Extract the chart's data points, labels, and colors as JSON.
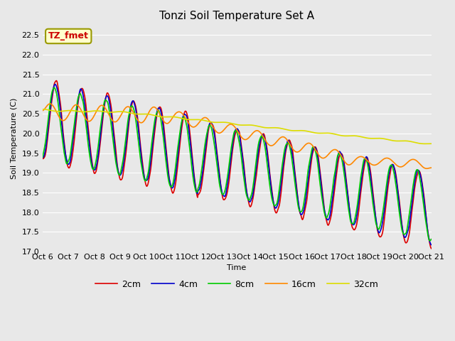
{
  "title": "Tonzi Soil Temperature Set A",
  "ylabel": "Soil Temperature (C)",
  "xlabel": "Time",
  "annotation_text": "TZ_fmet",
  "annotation_color": "#cc0000",
  "annotation_bg": "#ffffcc",
  "annotation_border": "#999900",
  "ylim": [
    17.0,
    22.75
  ],
  "yticks": [
    17.0,
    17.5,
    18.0,
    18.5,
    19.0,
    19.5,
    20.0,
    20.5,
    21.0,
    21.5,
    22.0,
    22.5
  ],
  "bg_color": "#e8e8e8",
  "grid_color": "#ffffff",
  "line_colors": [
    "#dd0000",
    "#0000cc",
    "#00cc00",
    "#ff8800",
    "#dddd00"
  ],
  "line_labels": [
    "2cm",
    "4cm",
    "8cm",
    "16cm",
    "32cm"
  ],
  "line_width": 1.2,
  "xtick_labels": [
    "Oct 6",
    "Oct 7",
    "Oct 8",
    "Oct 9",
    "Oct 10",
    "Oct 11",
    "Oct 12",
    "Oct 13",
    "Oct 14",
    "Oct 15",
    "Oct 16",
    "Oct 17",
    "Oct 18",
    "Oct 19",
    "Oct 20",
    "Oct 21"
  ],
  "title_fontsize": 11,
  "axis_fontsize": 8,
  "tick_fontsize": 8,
  "legend_fontsize": 9
}
